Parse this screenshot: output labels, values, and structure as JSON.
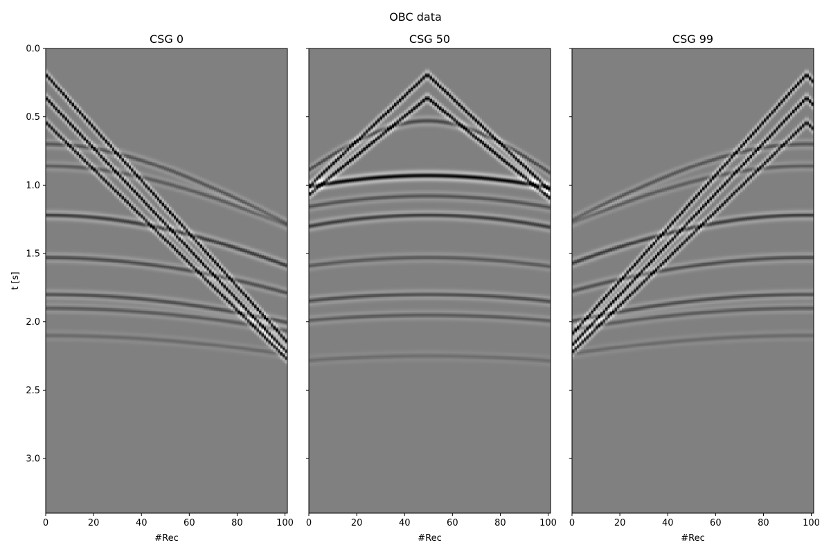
{
  "figure": {
    "title": "OBC data"
  },
  "colors": {
    "background": "#808080",
    "peak": "#ffffff",
    "trough": "#000000",
    "frame": "#000000"
  },
  "chart_data": [
    {
      "type": "heatmap",
      "title": "CSG 0",
      "xlabel": "#Rec",
      "ylabel": "t [s]",
      "xlim": [
        0,
        101
      ],
      "ylim": [
        3.4,
        0.0
      ],
      "xticks": [
        0,
        20,
        40,
        60,
        80,
        100
      ],
      "yticks": [
        0.0,
        0.5,
        1.0,
        1.5,
        2.0,
        2.5,
        3.0
      ],
      "source_receiver": 0,
      "colormap": "gray",
      "grid": false,
      "legend": "none",
      "events": [
        {
          "kind": "direct",
          "t0": 0.19,
          "slope": 0.0192,
          "amp": 1.0
        },
        {
          "kind": "direct",
          "t0": 0.36,
          "slope": 0.0183,
          "amp": 1.0
        },
        {
          "kind": "direct",
          "t0": 0.54,
          "slope": 0.017,
          "amp": 0.9
        },
        {
          "kind": "reflection",
          "t0": 0.7,
          "v": 95,
          "amp": 0.35
        },
        {
          "kind": "reflection",
          "t0": 0.86,
          "v": 105,
          "amp": 0.3
        },
        {
          "kind": "reflection",
          "t0": 1.22,
          "v": 100,
          "amp": 0.55
        },
        {
          "kind": "reflection",
          "t0": 1.53,
          "v": 110,
          "amp": 0.4
        },
        {
          "kind": "reflection",
          "t0": 1.8,
          "v": 115,
          "amp": 0.4
        },
        {
          "kind": "reflection",
          "t0": 1.9,
          "v": 125,
          "amp": 0.3
        },
        {
          "kind": "reflection",
          "t0": 2.1,
          "v": 130,
          "amp": 0.18
        }
      ]
    },
    {
      "type": "heatmap",
      "title": "CSG 50",
      "xlabel": "#Rec",
      "ylabel": "",
      "xlim": [
        0,
        101
      ],
      "ylim": [
        3.4,
        0.0
      ],
      "xticks": [
        0,
        20,
        40,
        60,
        80,
        100
      ],
      "yticks": [
        0.0,
        0.5,
        1.0,
        1.5,
        2.0,
        2.5,
        3.0
      ],
      "source_receiver": 50,
      "colormap": "gray",
      "grid": false,
      "legend": "none",
      "events": [
        {
          "kind": "direct",
          "t0": 0.19,
          "slope": 0.0164,
          "amp": 1.0
        },
        {
          "kind": "direct",
          "t0": 0.36,
          "slope": 0.0142,
          "amp": 1.0
        },
        {
          "kind": "reflection",
          "t0": 0.53,
          "v": 70,
          "amp": 0.45
        },
        {
          "kind": "reflection",
          "t0": 0.93,
          "v": 125,
          "amp": 1.0
        },
        {
          "kind": "reflection",
          "t0": 1.08,
          "v": 120,
          "amp": 0.35
        },
        {
          "kind": "reflection",
          "t0": 1.22,
          "v": 110,
          "amp": 0.55
        },
        {
          "kind": "reflection",
          "t0": 1.53,
          "v": 115,
          "amp": 0.3
        },
        {
          "kind": "reflection",
          "t0": 1.8,
          "v": 120,
          "amp": 0.4
        },
        {
          "kind": "reflection",
          "t0": 1.95,
          "v": 125,
          "amp": 0.3
        },
        {
          "kind": "reflection",
          "t0": 2.25,
          "v": 130,
          "amp": 0.15
        }
      ]
    },
    {
      "type": "heatmap",
      "title": "CSG 99",
      "xlabel": "#Rec",
      "ylabel": "",
      "xlim": [
        0,
        101
      ],
      "ylim": [
        3.4,
        0.0
      ],
      "xticks": [
        0,
        20,
        40,
        60,
        80,
        100
      ],
      "yticks": [
        0.0,
        0.5,
        1.0,
        1.5,
        2.0,
        2.5,
        3.0
      ],
      "source_receiver": 99,
      "colormap": "gray",
      "grid": false,
      "legend": "none",
      "events": [
        {
          "kind": "direct",
          "t0": 0.19,
          "slope": 0.0192,
          "amp": 1.0
        },
        {
          "kind": "direct",
          "t0": 0.36,
          "slope": 0.0183,
          "amp": 1.0
        },
        {
          "kind": "direct",
          "t0": 0.54,
          "slope": 0.017,
          "amp": 0.9
        },
        {
          "kind": "reflection",
          "t0": 0.7,
          "v": 95,
          "amp": 0.35
        },
        {
          "kind": "reflection",
          "t0": 0.86,
          "v": 105,
          "amp": 0.3
        },
        {
          "kind": "reflection",
          "t0": 1.22,
          "v": 100,
          "amp": 0.55
        },
        {
          "kind": "reflection",
          "t0": 1.53,
          "v": 110,
          "amp": 0.4
        },
        {
          "kind": "reflection",
          "t0": 1.8,
          "v": 115,
          "amp": 0.4
        },
        {
          "kind": "reflection",
          "t0": 1.9,
          "v": 125,
          "amp": 0.3
        },
        {
          "kind": "reflection",
          "t0": 2.1,
          "v": 130,
          "amp": 0.18
        }
      ]
    }
  ]
}
